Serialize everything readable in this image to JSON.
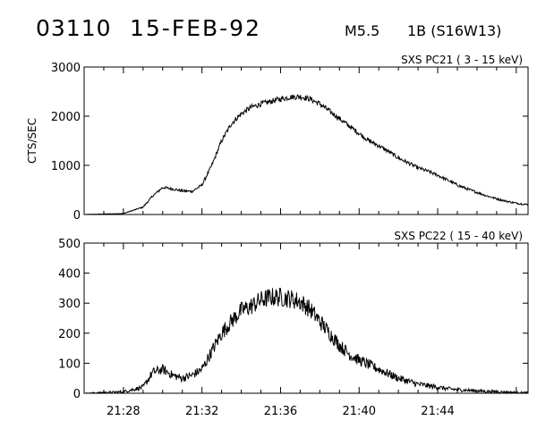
{
  "header": {
    "event_id": "03110",
    "date": "15-FEB-92",
    "goes_class": "M5.5",
    "optical": "1B (S16W13)"
  },
  "chart_data": [
    {
      "type": "line",
      "title": "SXS PC21  (  3 - 15 keV)",
      "xlabel": "",
      "ylabel": "CTS/SEC",
      "x_unit": "UT (HH:MM)",
      "xlim": [
        "21:26.0",
        "21:48.6"
      ],
      "ylim": [
        0,
        3000
      ],
      "yticks": [
        0,
        1000,
        2000,
        3000
      ],
      "x": [
        "21:26",
        "21:28",
        "21:29",
        "21:29.5",
        "21:30",
        "21:30.5",
        "21:31",
        "21:31.5",
        "21:32",
        "21:32.5",
        "21:33",
        "21:33.5",
        "21:34",
        "21:34.5",
        "21:35",
        "21:35.5",
        "21:36",
        "21:36.5",
        "21:37",
        "21:37.5",
        "21:38",
        "21:38.5",
        "21:39",
        "21:39.5",
        "21:40",
        "21:40.5",
        "21:41",
        "21:41.5",
        "21:42",
        "21:42.5",
        "21:43",
        "21:43.5",
        "21:44",
        "21:44.5",
        "21:45",
        "21:45.5",
        "21:46",
        "21:46.5",
        "21:47",
        "21:47.5",
        "21:48",
        "21:48.6"
      ],
      "values": [
        0,
        20,
        150,
        380,
        550,
        520,
        480,
        470,
        600,
        1000,
        1500,
        1850,
        2050,
        2180,
        2250,
        2300,
        2350,
        2390,
        2400,
        2350,
        2250,
        2100,
        1950,
        1800,
        1650,
        1500,
        1400,
        1280,
        1150,
        1050,
        950,
        880,
        800,
        700,
        600,
        520,
        450,
        380,
        320,
        270,
        230,
        200
      ],
      "grid": false
    },
    {
      "type": "line",
      "title": "SXS PC22  ( 15 - 40 keV)",
      "xlabel": "",
      "ylabel": "",
      "x_unit": "UT (HH:MM)",
      "xlim": [
        "21:26.0",
        "21:48.6"
      ],
      "ylim": [
        0,
        500
      ],
      "yticks": [
        0,
        100,
        200,
        300,
        400,
        500
      ],
      "xticks": [
        "21:28",
        "21:32",
        "21:36",
        "21:40",
        "21:44"
      ],
      "x": [
        "21:26",
        "21:28",
        "21:29",
        "21:29.5",
        "21:30",
        "21:30.5",
        "21:31",
        "21:31.5",
        "21:32",
        "21:32.5",
        "21:33",
        "21:33.5",
        "21:34",
        "21:34.5",
        "21:35",
        "21:35.5",
        "21:36",
        "21:36.5",
        "21:37",
        "21:37.5",
        "21:38",
        "21:38.5",
        "21:39",
        "21:39.5",
        "21:40",
        "21:40.5",
        "21:41",
        "21:41.5",
        "21:42",
        "21:42.5",
        "21:43",
        "21:43.5",
        "21:44",
        "21:44.5",
        "21:45",
        "21:45.5",
        "21:46",
        "21:46.5",
        "21:47",
        "21:47.5",
        "21:48",
        "21:48.6"
      ],
      "values": [
        0,
        5,
        20,
        70,
        80,
        60,
        50,
        60,
        80,
        140,
        200,
        240,
        275,
        290,
        310,
        320,
        320,
        315,
        305,
        280,
        240,
        200,
        160,
        130,
        110,
        95,
        80,
        65,
        50,
        40,
        30,
        25,
        20,
        15,
        12,
        10,
        8,
        6,
        5,
        4,
        3,
        2
      ],
      "grid": false
    }
  ]
}
